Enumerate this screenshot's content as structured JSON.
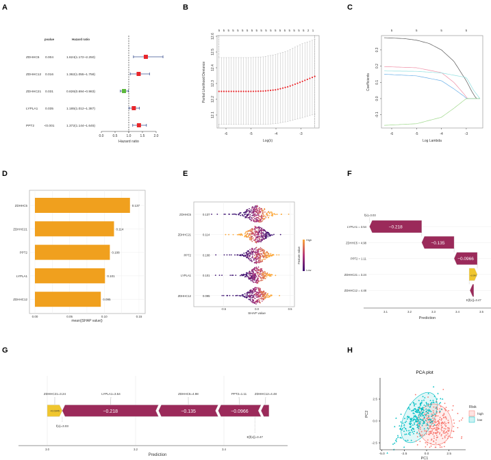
{
  "panel_labels": [
    "A",
    "B",
    "C",
    "D",
    "E",
    "F",
    "G",
    "H"
  ],
  "chart_data": [
    {
      "panel": "A",
      "type": "forest",
      "columns": [
        "pvalue",
        "Hazard ratio"
      ],
      "rows": [
        {
          "gene": "ZDHHC5",
          "pvalue": "0.004",
          "hr_text": "1.624(1.172~2.250)",
          "hr": 1.624,
          "lo": 1.172,
          "hi": 2.25
        },
        {
          "gene": "ZDHHC12",
          "pvalue": "0.016",
          "hr_text": "1.362(1.055~1.758)",
          "hr": 1.362,
          "lo": 1.055,
          "hi": 1.758
        },
        {
          "gene": "ZDHHC21",
          "pvalue": "0.031",
          "hr_text": "0.826(0.694~0.983)",
          "hr": 0.826,
          "lo": 0.694,
          "hi": 0.983
        },
        {
          "gene": "LYPLA1",
          "pvalue": "0.035",
          "hr_text": "1.185(1.012~1.387)",
          "hr": 1.185,
          "lo": 1.012,
          "hi": 1.387
        },
        {
          "gene": "PPT2",
          "pvalue": "<0.001",
          "hr_text": "1.372(1.144~1.645)",
          "hr": 1.372,
          "lo": 1.144,
          "hi": 1.645
        }
      ],
      "xlabel": "Hazard ratio",
      "xticks": [
        "0.0",
        "0.5",
        "1.0",
        "1.5",
        "2.0"
      ],
      "xlim": [
        0,
        2
      ],
      "reference": 1,
      "colors": {
        "risk": "#e8262b",
        "protective": "#5cb83c",
        "ci": "#3a4f8f"
      }
    },
    {
      "panel": "B",
      "type": "line",
      "xlabel": "Log(λ)",
      "ylabel": "Partial Likelihood Deviance",
      "xticks": [
        "-6",
        "-5",
        "-4",
        "-3"
      ],
      "yticks": [
        "12.1",
        "12.2",
        "12.3",
        "12.4",
        "12.5",
        "12.6"
      ],
      "xlim": [
        -6.28,
        -2.45
      ],
      "ylim": [
        12.1,
        12.6
      ],
      "top_labels": [
        "5",
        "5",
        "5",
        "5",
        "5",
        "5",
        "5",
        "5",
        "5",
        "5",
        "5",
        "5",
        "5",
        "5",
        "5",
        "5",
        "5",
        "5",
        "5",
        "2",
        "1"
      ],
      "x": [
        -6.28,
        -5,
        -4.5,
        -4,
        -3.5,
        -3,
        -2.45
      ],
      "mean": [
        12.25,
        12.25,
        12.252,
        12.26,
        12.28,
        12.31,
        12.345
      ],
      "upper": [
        12.465,
        12.465,
        12.47,
        12.485,
        12.51,
        12.55,
        12.58
      ],
      "lower": [
        12.04,
        12.04,
        12.04,
        12.045,
        12.06,
        12.08,
        12.105
      ],
      "vlines": [
        -6.28,
        -2.45
      ],
      "n_points": 40,
      "colors": {
        "point": "#e8262b",
        "bar": "#bbbbbb"
      }
    },
    {
      "panel": "C",
      "type": "line",
      "xlabel": "Log Lambda",
      "ylabel": "Coefficients",
      "xticks": [
        "-6",
        "-5",
        "-4",
        "-3"
      ],
      "yticks": [
        "-0.1",
        "0.0",
        "0.1",
        "0.2",
        "0.3"
      ],
      "top_labels": [
        "5",
        "5",
        "5",
        "5"
      ],
      "xlim": [
        -6.3,
        -2.45
      ],
      "series": [
        {
          "color": "#555555",
          "x": [
            -6.3,
            -5.5,
            -5,
            -4.5,
            -4,
            -3.5,
            -3,
            -2.8,
            -2.6,
            -2.45
          ],
          "y": [
            0.375,
            0.37,
            0.36,
            0.34,
            0.3,
            0.23,
            0.11,
            0.05,
            0,
            0
          ]
        },
        {
          "color": "#ef8fa6",
          "x": [
            -6.3,
            -5,
            -4,
            -3.5,
            -3.1,
            -2.95,
            -2.45
          ],
          "y": [
            0.197,
            0.19,
            0.16,
            0.1,
            0.03,
            0,
            0
          ]
        },
        {
          "color": "#8fe0e0",
          "x": [
            -6.3,
            -5,
            -4,
            -3,
            -2.7,
            -2.45
          ],
          "y": [
            0.17,
            0.168,
            0.158,
            0.13,
            0.05,
            0
          ]
        },
        {
          "color": "#6ab0e8",
          "x": [
            -6.3,
            -5,
            -4,
            -3.5,
            -3.05,
            -3,
            -2.45
          ],
          "y": [
            0.15,
            0.14,
            0.11,
            0.06,
            0.01,
            0,
            0
          ]
        },
        {
          "color": "#9ed88a",
          "x": [
            -6.3,
            -5,
            -4,
            -3.5,
            -3,
            -2.45
          ],
          "y": [
            -0.165,
            -0.155,
            -0.115,
            -0.06,
            0,
            0
          ]
        }
      ]
    },
    {
      "panel": "D",
      "type": "bar",
      "categories": [
        "ZDHHC5",
        "ZDHHC21",
        "PPT2",
        "LYPLA1",
        "ZDHHC12"
      ],
      "values": [
        0.137,
        0.114,
        0.108,
        0.101,
        0.095
      ],
      "value_labels": [
        "0.137",
        "0.114",
        "0.108",
        "0.101",
        "0.095"
      ],
      "xticks": [
        "0.00",
        "0.05",
        "0.10",
        "0.15"
      ],
      "xlim": [
        0,
        0.15
      ],
      "xlabel": "mean(|SHAP value|)",
      "color": "#f0a01e"
    },
    {
      "panel": "E",
      "type": "scatter",
      "categories": [
        "ZDHHC5",
        "ZDHHC21",
        "PPT2",
        "LYPLA1",
        "ZDHHC12"
      ],
      "value_labels": [
        "0.137",
        "0.114",
        "0.108",
        "0.101",
        "0.095"
      ],
      "xticks": [
        "-0.5",
        "0.0",
        "0.5"
      ],
      "xlim": [
        -0.85,
        0.55
      ],
      "xlabel": "SHAP value",
      "legend": {
        "title": "Feature value",
        "high": "High",
        "low": "Low"
      },
      "colors": {
        "low": "#3b0f70",
        "mid": "#b5367a",
        "high": "#fca636"
      }
    },
    {
      "panel": "F",
      "type": "bar",
      "rows": [
        {
          "label": "LYPLA1 = 3.54",
          "start": 3.251,
          "end": 3.033,
          "value_label": "−0.218"
        },
        {
          "label": "ZDHHC5 = 4.98",
          "start": 3.386,
          "end": 3.251,
          "value_label": "−0.135"
        },
        {
          "label": "PPT2 = 1.11",
          "start": 3.483,
          "end": 3.386,
          "value_label": "−0.0966"
        },
        {
          "label": "ZDHHC21 = 3.24",
          "start": 3.449,
          "end": 3.483,
          "value_label": "+0.0345"
        },
        {
          "label": "ZDHHC12 = 4.48",
          "start": 3.468,
          "end": 3.452,
          "value_label": ""
        }
      ],
      "fx_label": "f(x)=3.03",
      "efx_label": "E[f(x)]=3.47",
      "xticks": [
        "3.1",
        "3.2",
        "3.3",
        "3.4",
        "3.5"
      ],
      "xlabel": "Prediction",
      "colors": {
        "negative": "#9b2a5a",
        "positive": "#f0c62e"
      }
    },
    {
      "panel": "G",
      "type": "bar",
      "segments": [
        {
          "label": "ZDHHC21=3.24",
          "start": 3.0,
          "end": 3.034,
          "value_label": "+0.0345",
          "sign": "positive"
        },
        {
          "label": "LYPLA1=3.54",
          "start": 3.034,
          "end": 3.252,
          "value_label": "−0.218",
          "sign": "negative"
        },
        {
          "label": "ZDHHC5=4.98",
          "start": 3.252,
          "end": 3.387,
          "value_label": "−0.135",
          "sign": "negative"
        },
        {
          "label": "PPT2=1.11",
          "start": 3.387,
          "end": 3.484,
          "value_label": "−0.0966",
          "sign": "negative"
        },
        {
          "label": "ZDHHC12=4.48",
          "start": 3.484,
          "end": 3.502,
          "value_label": "",
          "sign": "negative"
        }
      ],
      "fx_label": "f(x)=3.03",
      "fx": 3.034,
      "efx_label": "E[f(x)]=3.47",
      "efx": 3.47,
      "xticks": [
        "3.0",
        "3.2",
        "3.4"
      ],
      "xlabel": "Prediction"
    },
    {
      "panel": "H",
      "type": "scatter",
      "title": "PCA plot",
      "xlabel": "PC1",
      "ylabel": "PC2",
      "xticks": [
        "-5.0",
        "-2.5",
        "0.0",
        "2.5"
      ],
      "yticks": [
        "-2.5",
        "0.0",
        "2.5"
      ],
      "legend": {
        "title": "Risk",
        "items": [
          {
            "label": "high",
            "color": "#f8766d"
          },
          {
            "label": "low",
            "color": "#00bfc4"
          }
        ]
      }
    }
  ]
}
